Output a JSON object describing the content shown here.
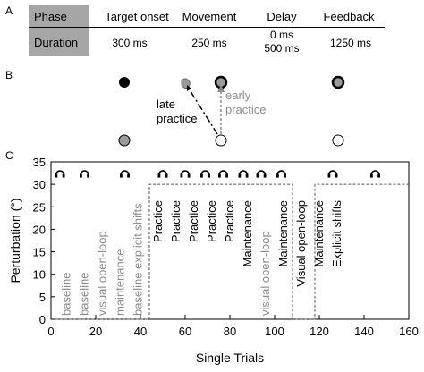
{
  "panel_a": {
    "letter": "A",
    "row1": [
      "Phase",
      "Target onset",
      "Movement",
      "Delay",
      "Feedback"
    ],
    "row2_label": "Duration",
    "durations": {
      "target_onset": "300 ms",
      "movement": "250 ms",
      "delay_1": "0 ms",
      "delay_2": "500 ms",
      "feedback": "1250 ms"
    },
    "header_fill": "#a6a6a6"
  },
  "panel_b": {
    "letter": "B",
    "late_label_1": "late",
    "late_label_2": "practice",
    "early_label_1": "early",
    "early_label_2": "practice",
    "early_color": "#8c8c8c"
  },
  "panel_c": {
    "letter": "C",
    "icon": "headphones-icon",
    "baseline_color": "#8c8c8c",
    "blocks": [
      {
        "x": 7,
        "label": "baseline",
        "style": "gray"
      },
      {
        "x": 15,
        "label": "baseline",
        "style": "gray"
      },
      {
        "x": 23,
        "label": "visual open-loop",
        "style": "gray"
      },
      {
        "x": 31,
        "label": "maintenance",
        "style": "gray"
      },
      {
        "x": 39,
        "label": "baseline explicit shifts",
        "style": "gray"
      },
      {
        "x": 47.5,
        "label": "Practice",
        "style": "black"
      },
      {
        "x": 55.5,
        "label": "Practice",
        "style": "black"
      },
      {
        "x": 63.5,
        "label": "Practice",
        "style": "black"
      },
      {
        "x": 71.5,
        "label": "Practice",
        "style": "black"
      },
      {
        "x": 79.5,
        "label": "Practice",
        "style": "black"
      },
      {
        "x": 87.5,
        "label": "Maintenance",
        "style": "black"
      },
      {
        "x": 95.5,
        "label": "visual open-loop",
        "style": "gray"
      },
      {
        "x": 103.5,
        "label": "Maintenance",
        "style": "black"
      },
      {
        "x": 111.5,
        "label": "Visual open-loop",
        "style": "black"
      },
      {
        "x": 119.5,
        "label": "Maintenance",
        "style": "black"
      },
      {
        "x": 127.5,
        "label": "Explicit shifts",
        "style": "black"
      }
    ]
  },
  "chart_data": {
    "type": "line",
    "xlabel": "Single Trials",
    "ylabel": "Perturbation (°)",
    "xlim": [
      0,
      160
    ],
    "ylim": [
      0,
      35
    ],
    "xticks": [
      0,
      20,
      40,
      60,
      80,
      100,
      120,
      140,
      160
    ],
    "yticks": [
      0,
      5,
      10,
      15,
      20,
      25,
      30,
      35
    ],
    "series": [
      {
        "x": [
          2,
          44,
          44,
          108,
          108,
          118,
          118,
          160
        ],
        "y": [
          0,
          0,
          30,
          30,
          0,
          0,
          30,
          30
        ]
      }
    ],
    "headphone_trials": [
      4,
      15,
      33,
      50,
      60,
      69,
      77,
      86,
      94,
      103,
      126,
      145
    ],
    "annotations_x_rotated": [
      7,
      15,
      23,
      31,
      39,
      48,
      56,
      64,
      72,
      80,
      88,
      96,
      104,
      112,
      120,
      128
    ]
  }
}
